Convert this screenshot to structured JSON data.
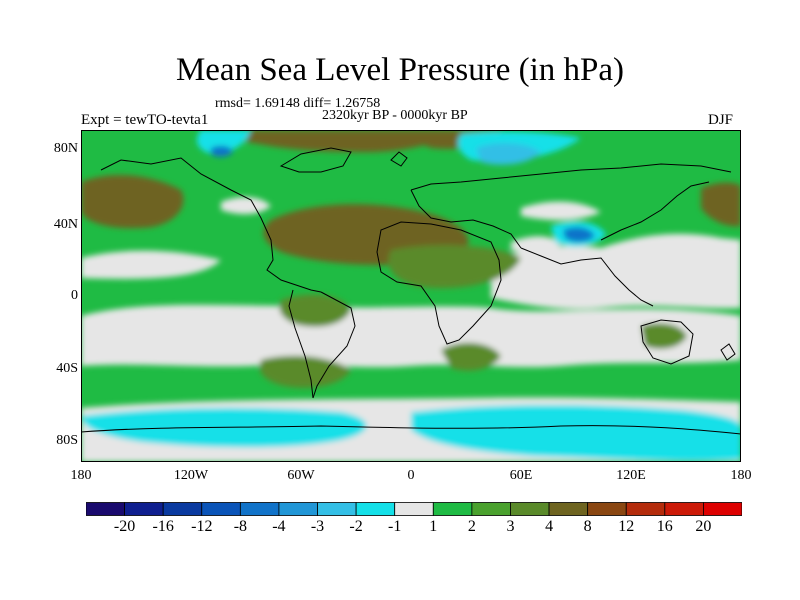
{
  "title": "Mean Sea Level Pressure (in hPa)",
  "stats_label": "rmsd= 1.69148 diff= 1.26758",
  "period_label": "2320kyr BP - 0000kyr BP",
  "experiment_label": "Expt = tewTO-tevta1",
  "season_label": "DJF",
  "lat_labels": [
    "80N",
    "40N",
    "0",
    "40S",
    "80S"
  ],
  "lon_labels": [
    "180",
    "120W",
    "60W",
    "0",
    "60E",
    "120E",
    "180"
  ],
  "colorbar": {
    "labels": [
      "-20",
      "-16",
      "-12",
      "-8",
      "-4",
      "-3",
      "-2",
      "-1",
      "1",
      "2",
      "3",
      "4",
      "8",
      "12",
      "16",
      "20"
    ],
    "colors": [
      "#1a0a6e",
      "#0f1f8f",
      "#0a3aa0",
      "#0a54b8",
      "#1173c9",
      "#2196d6",
      "#33bfe6",
      "#14e0e8",
      "#e6e6e6",
      "#1fbb44",
      "#4aa12e",
      "#5a8a2a",
      "#6e6420",
      "#8a4712",
      "#b42c0c",
      "#cc1a08",
      "#dd0000"
    ]
  },
  "map_colors": {
    "neutral": "#e6e6e6",
    "green": "#1fbb44",
    "olive": "#4aa12e",
    "darkolive": "#5a8a2a",
    "brown": "#6e6420",
    "cyan": "#14e0e8",
    "lightblue": "#33bfe6",
    "blue": "#1173c9",
    "darkblue": "#0a3aa0",
    "coast": "#000000"
  }
}
